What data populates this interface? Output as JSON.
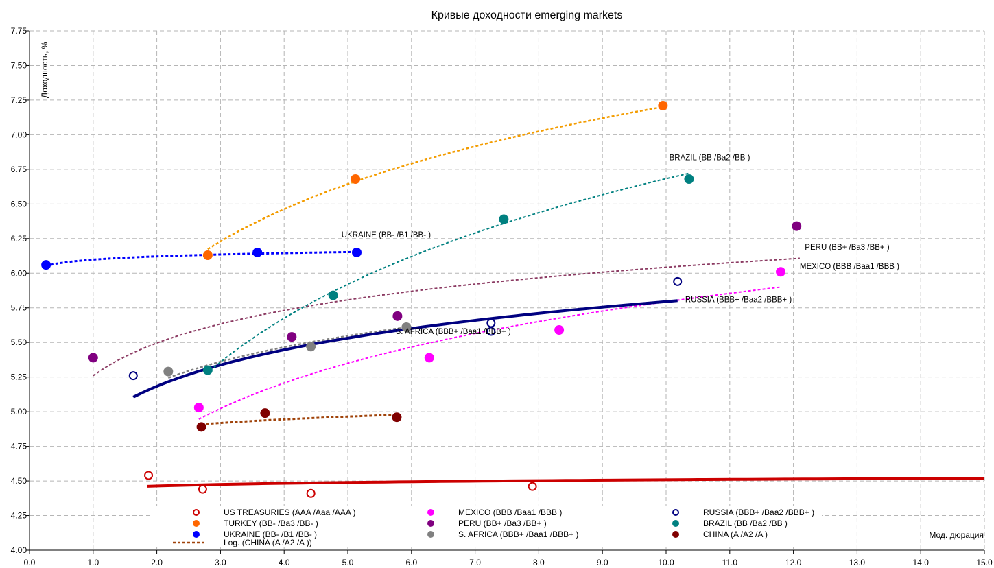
{
  "chart_data": {
    "type": "scatter",
    "title": "Кривые доходности emerging markets",
    "xlabel": "Мод. дюрация",
    "ylabel": "Доходность, %",
    "xlim": [
      0,
      15
    ],
    "ylim": [
      4.0,
      7.75
    ],
    "x_ticks": [
      "0.0",
      "1.0",
      "2.0",
      "3.0",
      "4.0",
      "5.0",
      "6.0",
      "7.0",
      "8.0",
      "9.0",
      "10.0",
      "11.0",
      "12.0",
      "13.0",
      "14.0",
      "15.0"
    ],
    "y_ticks": [
      "4.00",
      "4.25",
      "4.50",
      "4.75",
      "5.00",
      "5.25",
      "5.50",
      "5.75",
      "6.00",
      "6.25",
      "6.50",
      "6.75",
      "7.00",
      "7.25",
      "7.50",
      "7.75"
    ],
    "grid": true,
    "legend_position": "bottom",
    "series": [
      {
        "name": "US TREASURIES (AAA /Aaa /AAA )",
        "color": "#cc0000",
        "marker": "hollow",
        "points": [
          [
            1.87,
            4.54
          ],
          [
            2.72,
            4.44
          ],
          [
            4.42,
            4.41
          ],
          [
            7.9,
            4.46
          ]
        ],
        "trend": {
          "x_from": 1.85,
          "x_to": 15.0,
          "a": 4.444,
          "b": 0.028,
          "style": "solid",
          "width": 4
        }
      },
      {
        "name": "TURKEY (BB- /Ba3 /BB- )",
        "color": "#ff6600",
        "marker": "filled",
        "points": [
          [
            2.8,
            6.13
          ],
          [
            5.12,
            6.68
          ],
          [
            9.95,
            7.21
          ]
        ],
        "trend": {
          "x_from": 2.8,
          "x_to": 9.95,
          "a": 5.34,
          "b": 0.81,
          "style": "dotted",
          "width": 2.5,
          "color": "#f39c00"
        }
      },
      {
        "name": "UKRAINE (BB- /B1 /BB- )",
        "color": "#0000ff",
        "marker": "filled",
        "points": [
          [
            0.26,
            6.06
          ],
          [
            3.58,
            6.15
          ],
          [
            5.14,
            6.15
          ]
        ],
        "trend": {
          "x_from": 0.26,
          "x_to": 5.14,
          "a": 6.098,
          "b": 0.034,
          "style": "dotted",
          "width": 3
        }
      },
      {
        "name": "MEXICO (BBB /Baa1 /BBB )",
        "color": "#ff00ff",
        "marker": "filled",
        "points": [
          [
            2.66,
            5.03
          ],
          [
            6.28,
            5.39
          ],
          [
            8.32,
            5.59
          ],
          [
            11.8,
            6.01
          ]
        ],
        "trend": {
          "x_from": 2.66,
          "x_to": 11.8,
          "a": 4.32,
          "b": 0.64,
          "style": "dotted",
          "width": 2
        }
      },
      {
        "name": "PERU (BB+ /Ba3 /BB+ )",
        "color": "#800080",
        "marker": "filled",
        "points": [
          [
            1.0,
            5.39
          ],
          [
            4.12,
            5.54
          ],
          [
            5.78,
            5.69
          ],
          [
            12.05,
            6.34
          ]
        ],
        "label": "PERU (BB+ /Ba3 /BB+ )",
        "trend": {
          "x_from": 1.0,
          "x_to": 12.1,
          "a": 5.26,
          "b": 0.34,
          "style": "dotted",
          "width": 2,
          "color": "#8b3a62"
        }
      },
      {
        "name": "S. AFRICA (BBB+ /Baa1 /BBB+ )",
        "color": "#808080",
        "marker": "filled",
        "points": [
          [
            2.18,
            5.29
          ],
          [
            4.42,
            5.47
          ],
          [
            5.92,
            5.61
          ]
        ],
        "label": "S. AFRICA (BBB+ /Baa1 /BBB+ )",
        "trend": {
          "x_from": 2.18,
          "x_to": 5.92,
          "a": 4.96,
          "b": 0.365,
          "style": "dotted",
          "width": 2.5
        }
      },
      {
        "name": "RUSSIA (BBB+ /Baa2 /BBB+ )",
        "color": "#000080",
        "marker": "hollow",
        "points": [
          [
            1.63,
            5.26
          ],
          [
            7.25,
            5.64
          ],
          [
            7.25,
            5.58
          ],
          [
            10.18,
            5.94
          ]
        ],
        "label": "RUSSIA (BBB+ /Baa2 /BBB+ )",
        "trend": {
          "x_from": 1.63,
          "x_to": 10.18,
          "a": 4.92,
          "b": 0.38,
          "style": "solid",
          "width": 4
        }
      },
      {
        "name": "BRAZIL (BB /Ba2 /BB )",
        "color": "#008080",
        "marker": "filled",
        "points": [
          [
            2.8,
            5.3
          ],
          [
            4.77,
            5.84
          ],
          [
            7.45,
            6.39
          ],
          [
            10.36,
            6.68
          ]
        ],
        "label": "BRAZIL (BB /Ba2 /BB )",
        "trend": {
          "x_from": 2.9,
          "x_to": 10.36,
          "a": 4.15,
          "b": 1.1,
          "style": "dotted",
          "width": 2
        }
      },
      {
        "name": "CHINA (A /A2 /A )",
        "color": "#800000",
        "marker": "filled",
        "points": [
          [
            2.7,
            4.89
          ],
          [
            3.7,
            4.99
          ],
          [
            5.77,
            4.96
          ]
        ],
        "trend": {
          "x_from": 2.7,
          "x_to": 5.77,
          "a": 4.82,
          "b": 0.09,
          "style": "dotted",
          "width": 3,
          "color": "#a0430a"
        }
      }
    ],
    "trend_legend": "Log. (CHINA (A /A2 /A ))",
    "extra_labels": [
      "UKRAINE (BB- /B1 /BB- )",
      "MEXICO (BBB /Baa1 /BBB )"
    ]
  }
}
